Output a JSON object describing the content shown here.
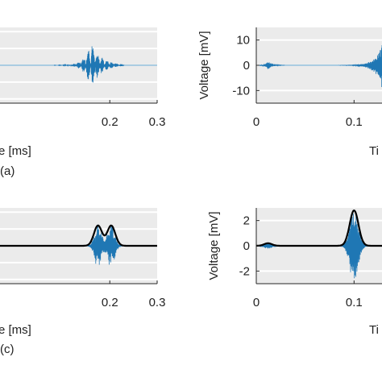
{
  "figure": {
    "colors": {
      "panel_bg": "#ebebeb",
      "grid": "#ffffff",
      "signal": "#1f77b4",
      "envelope": "#000000",
      "axis": "#262626"
    }
  },
  "chart_data": [
    {
      "id": "a",
      "type": "line",
      "caption": "(a)",
      "xlabel": "e [ms]",
      "ylabel": "",
      "xlim": [
        -0.1,
        0.3
      ],
      "ylim": [
        -15,
        15
      ],
      "xticks": [
        0.2,
        0.3
      ],
      "xtick_labels": [
        "0.2",
        "0.3"
      ],
      "yticks": [],
      "ytick_labels": [],
      "grid": true,
      "series": [
        {
          "kind": "signal",
          "style": "oscillation",
          "bursts": [
            {
              "t0": 0.16,
              "amp": 9,
              "decay": 0.022,
              "freq": 180,
              "end": 0.23
            }
          ]
        }
      ]
    },
    {
      "id": "b",
      "type": "line",
      "caption": "",
      "xlabel": "Ti",
      "ylabel": "Voltage [mV]",
      "xlim": [
        0,
        0.15
      ],
      "ylim": [
        -15,
        15
      ],
      "xticks": [
        0,
        0.1
      ],
      "xtick_labels": [
        "0",
        "0.1"
      ],
      "yticks": [
        10,
        0,
        -10
      ],
      "ytick_labels": [
        "10",
        "0",
        "-10"
      ],
      "grid": true,
      "series": [
        {
          "kind": "signal",
          "style": "oscillation",
          "bursts": [
            {
              "t0": 0.012,
              "amp": 1.8,
              "decay": 0.004,
              "freq": 250
            },
            {
              "t0": 0.13,
              "amp": 11,
              "decay": 0.012,
              "freq": 200
            }
          ]
        }
      ]
    },
    {
      "id": "c",
      "type": "line",
      "caption": "(c)",
      "xlabel": "e [ms]",
      "ylabel": "",
      "xlim": [
        -0.1,
        0.3
      ],
      "ylim": [
        -3,
        3
      ],
      "xticks": [
        0.2,
        0.3
      ],
      "xtick_labels": [
        "0.2",
        "0.3"
      ],
      "yticks": [],
      "ytick_labels": [],
      "grid": true,
      "series": [
        {
          "kind": "envelope",
          "bumps": [
            {
              "center": 0.175,
              "amp": 1.6,
              "width": 0.0085
            },
            {
              "center": 0.203,
              "amp": 1.6,
              "width": 0.0085
            }
          ]
        },
        {
          "kind": "signal",
          "style": "oscillation",
          "bursts": [
            {
              "t0": 0.175,
              "amp": 1.8,
              "sigma": 0.0075,
              "freq": 230
            },
            {
              "t0": 0.203,
              "amp": 1.8,
              "sigma": 0.0075,
              "freq": 230
            }
          ]
        }
      ]
    },
    {
      "id": "d",
      "type": "line",
      "caption": "",
      "xlabel": "Ti",
      "ylabel": "Voltage [mV]",
      "xlim": [
        0,
        0.15
      ],
      "ylim": [
        -3,
        3
      ],
      "xticks": [
        0,
        0.1
      ],
      "xtick_labels": [
        "0",
        "0.1"
      ],
      "yticks": [
        2,
        0,
        -2
      ],
      "ytick_labels": [
        "2",
        "0",
        "-2"
      ],
      "grid": true,
      "series": [
        {
          "kind": "envelope",
          "bumps": [
            {
              "center": 0.012,
              "amp": 0.2,
              "width": 0.004
            },
            {
              "center": 0.1,
              "amp": 2.8,
              "width": 0.0045
            }
          ]
        },
        {
          "kind": "signal",
          "style": "oscillation",
          "bursts": [
            {
              "t0": 0.012,
              "amp": 0.25,
              "sigma": 0.004,
              "freq": 260
            },
            {
              "t0": 0.1,
              "amp": 2.9,
              "sigma": 0.0045,
              "freq": 260
            }
          ]
        }
      ]
    }
  ]
}
